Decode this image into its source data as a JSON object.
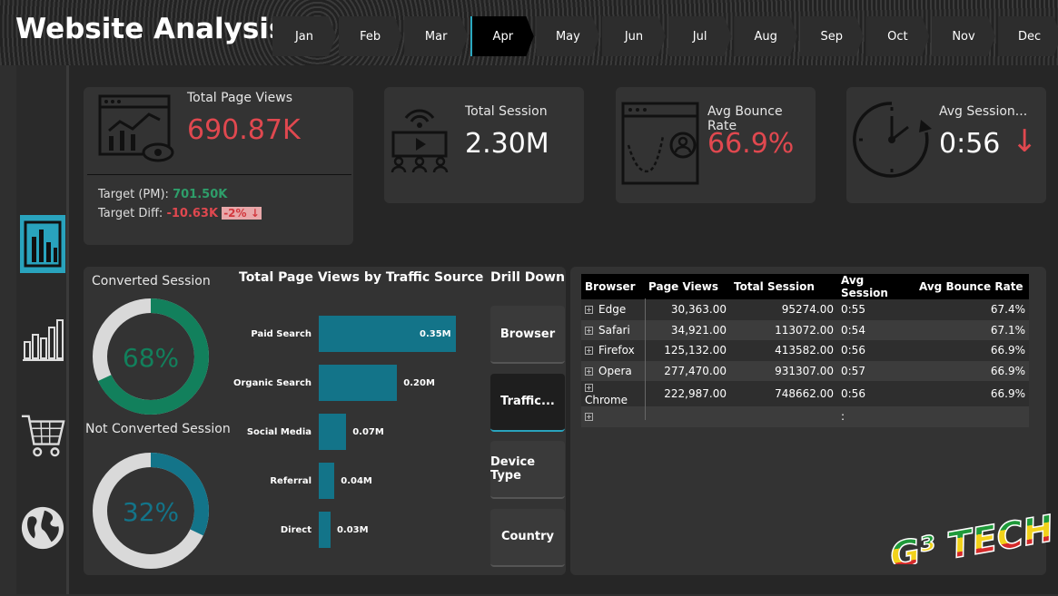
{
  "header": {
    "title": "Website Analysis",
    "months": [
      "Jan",
      "Feb",
      "Mar",
      "Apr",
      "May",
      "Jun",
      "Jul",
      "Aug",
      "Sep",
      "Oct",
      "Nov",
      "Dec"
    ],
    "selected_month": "Apr"
  },
  "sidebar": {
    "items": [
      {
        "icon": "bar-chart-icon",
        "active": true
      },
      {
        "icon": "column-chart-icon",
        "active": false
      },
      {
        "icon": "shopping-cart-icon",
        "active": false
      },
      {
        "icon": "globe-icon",
        "active": false
      }
    ]
  },
  "kpis": {
    "page_views": {
      "label": "Total Page Views",
      "value": "690.87K",
      "target_label": "Target (PM):",
      "target_value": "701.50K",
      "diff_label": "Target Diff:",
      "diff_value": "-10.63K",
      "diff_pct": "-2%",
      "arrow": "↓"
    },
    "sessions": {
      "label": "Total Session",
      "value": "2.30M"
    },
    "bounce": {
      "label": "Avg Bounce Rate",
      "value": "66.9%"
    },
    "avg_session": {
      "label": "Avg Session...",
      "value": "0:56",
      "arrow": "↓"
    }
  },
  "donuts": {
    "converted": {
      "label": "Converted Session",
      "value": "68%",
      "fraction": 0.68,
      "color": "#12805c"
    },
    "not_converted": {
      "label": "Not Converted Session",
      "value": "32%",
      "fraction": 0.32,
      "color": "#137489"
    }
  },
  "chart_data": {
    "type": "bar",
    "title": "Total Page Views by Traffic Source",
    "categories": [
      "Paid Search",
      "Organic Search",
      "Social Media",
      "Referral",
      "Direct"
    ],
    "values": [
      0.35,
      0.2,
      0.07,
      0.04,
      0.03
    ],
    "value_labels": [
      "0.35M",
      "0.20M",
      "0.07M",
      "0.04M",
      "0.03M"
    ],
    "xlim": [
      0,
      0.35
    ],
    "color": "#137489",
    "grid": false
  },
  "drill": {
    "title": "Drill Down",
    "buttons": [
      "Browser",
      "Traffic...",
      "Device Type",
      "Country"
    ],
    "active": "Traffic..."
  },
  "table": {
    "headers": [
      "Browser",
      "Page Views",
      "Total Session",
      "Avg Session",
      "Avg Bounce Rate"
    ],
    "rows": [
      [
        "Edge",
        "30,363.00",
        "95274.00",
        "0:55",
        "67.4%"
      ],
      [
        "Safari",
        "34,921.00",
        "113072.00",
        "0:54",
        "67.1%"
      ],
      [
        "Firefox",
        "125,132.00",
        "413582.00",
        "0:56",
        "66.9%"
      ],
      [
        "Opera",
        "277,470.00",
        "931307.00",
        "0:57",
        "66.9%"
      ],
      [
        "Chrome",
        "222,987.00",
        "748662.00",
        "0:56",
        "66.9%"
      ],
      [
        "",
        "",
        "",
        ":",
        ""
      ]
    ]
  },
  "logo": {
    "text": "G³ TECH"
  }
}
